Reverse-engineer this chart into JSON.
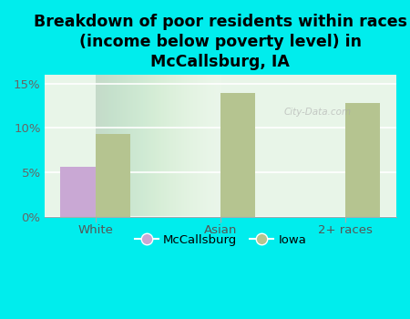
{
  "title": "Breakdown of poor residents within races\n(income below poverty level) in\nMcCallsburg, IA",
  "categories": [
    "White",
    "Asian",
    "2+ races"
  ],
  "mccallsburg_values": [
    5.6,
    0,
    0
  ],
  "iowa_values": [
    9.3,
    13.9,
    12.8
  ],
  "mccallsburg_color": "#c9a8d4",
  "iowa_color": "#b5c490",
  "background_color": "#00eded",
  "plot_bg_top": "#d4edd4",
  "plot_bg_bottom": "#f0f8f0",
  "ylim": [
    0,
    0.16
  ],
  "yticks": [
    0,
    0.05,
    0.1,
    0.15
  ],
  "ytick_labels": [
    "0%",
    "5%",
    "10%",
    "15%"
  ],
  "legend_labels": [
    "McCallsburg",
    "Iowa"
  ],
  "bar_width": 0.28,
  "title_fontsize": 12.5,
  "tick_fontsize": 9.5,
  "legend_fontsize": 9.5
}
